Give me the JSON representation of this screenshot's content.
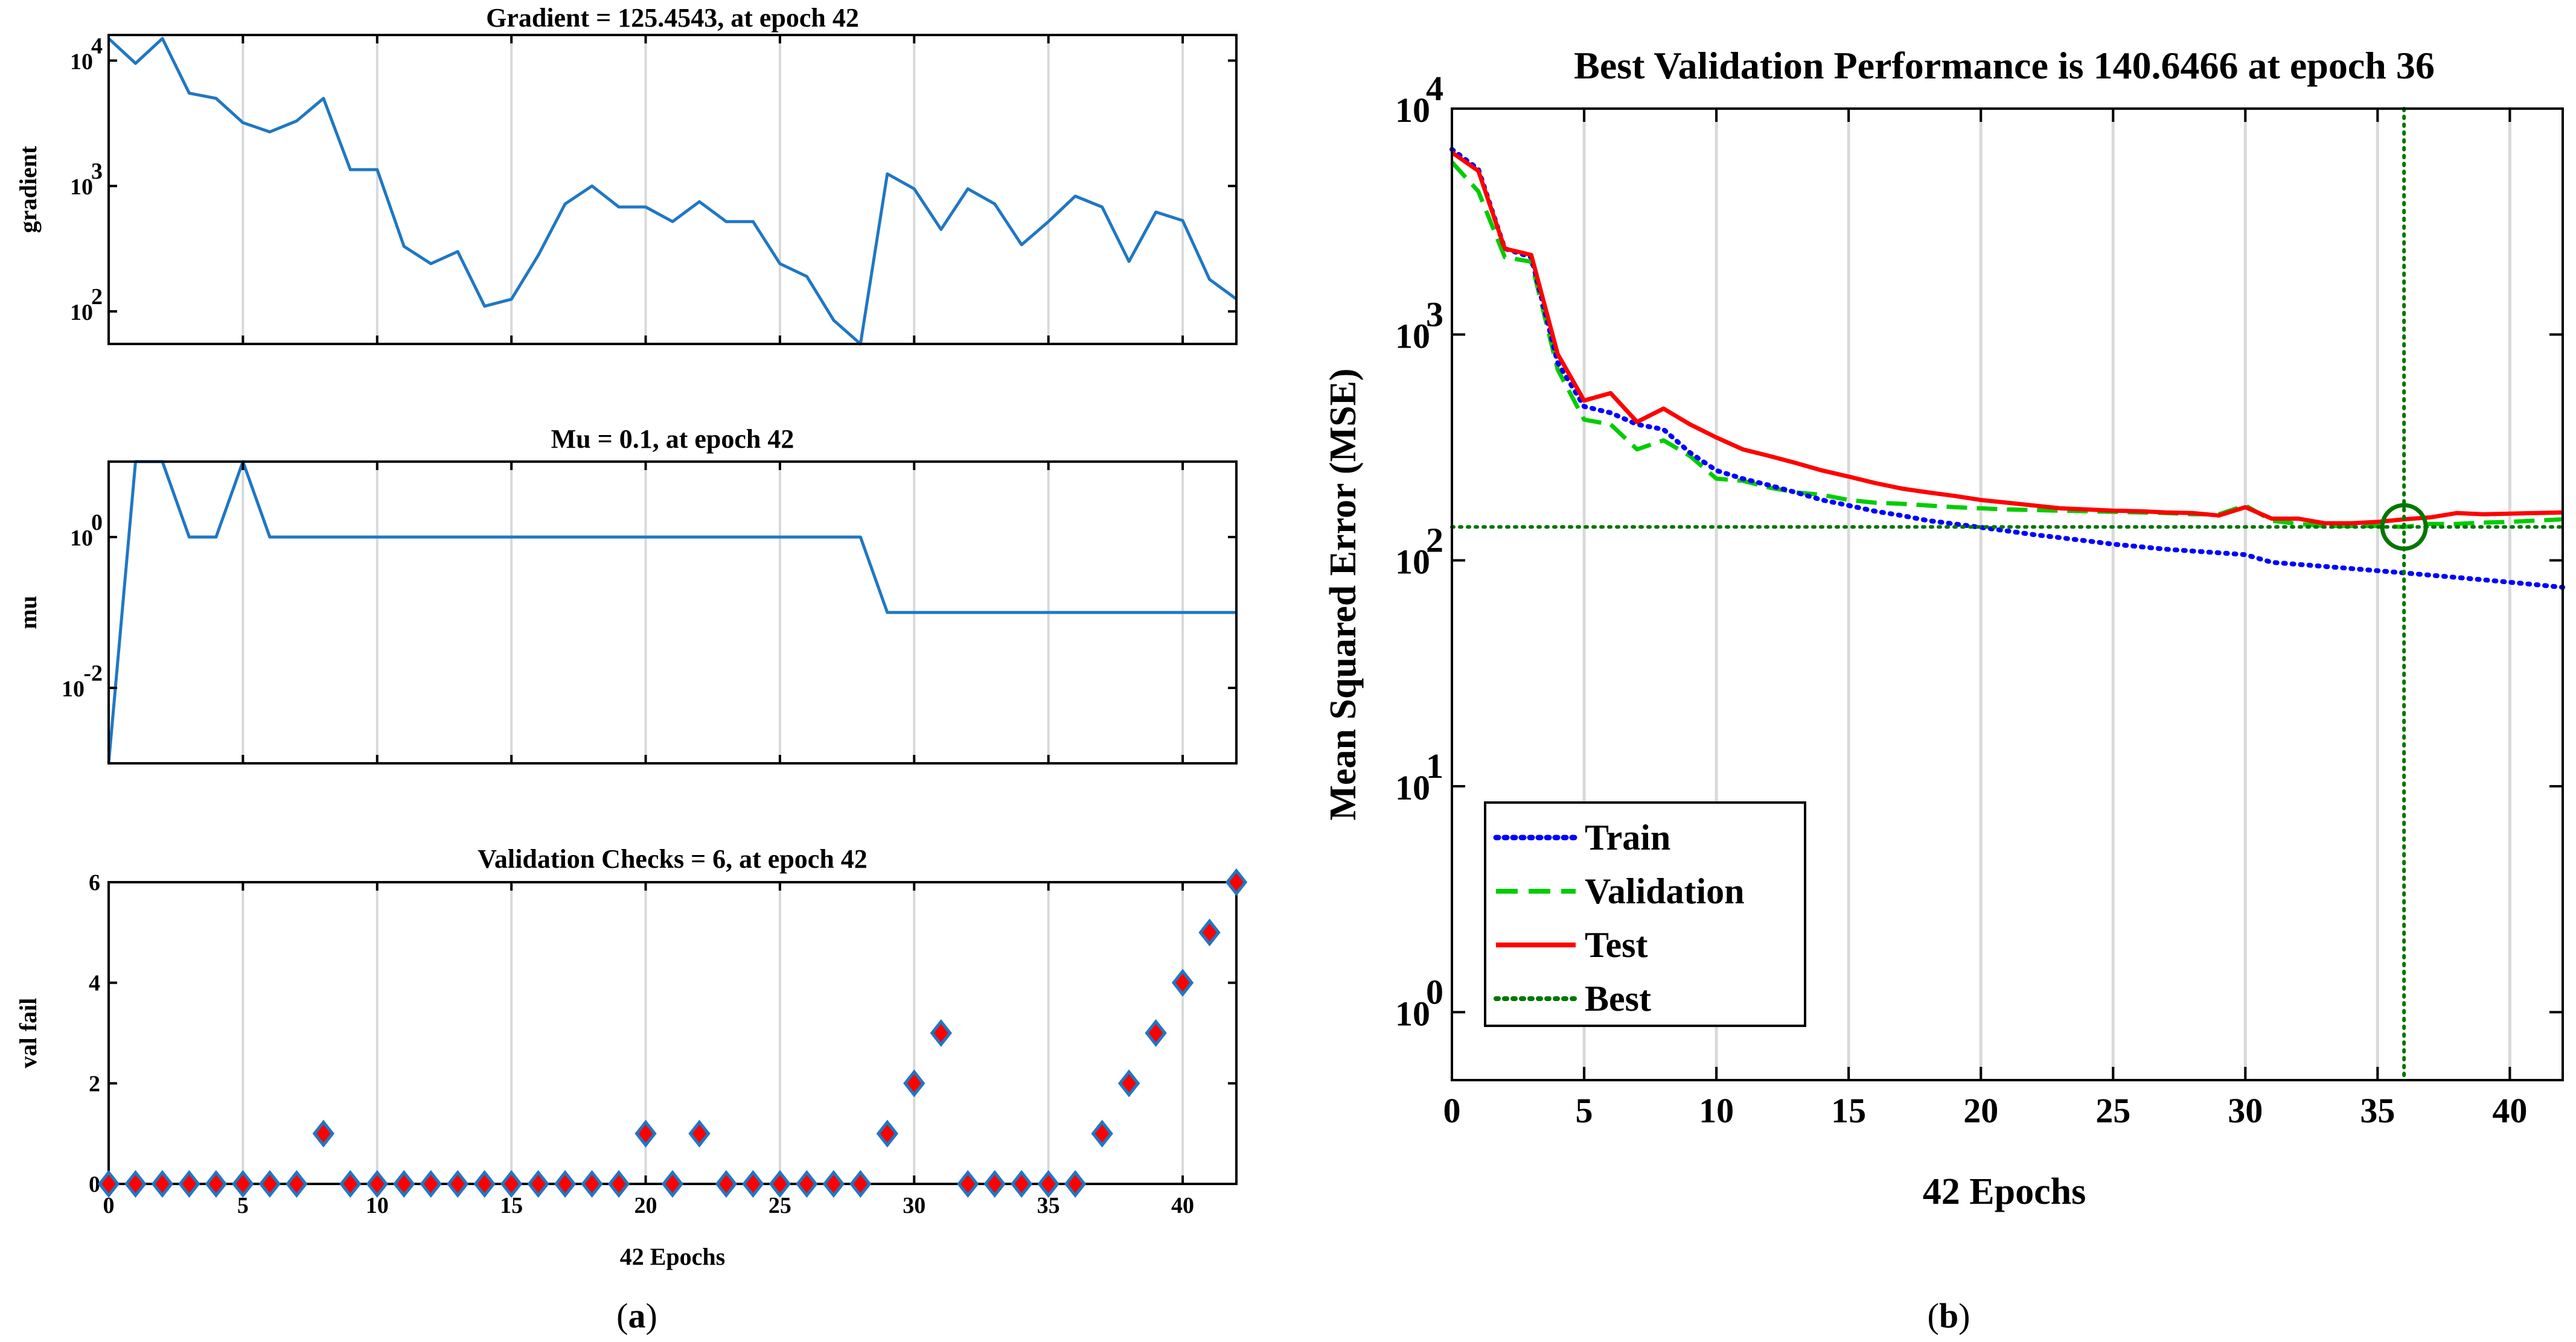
{
  "panels": [
    {
      "caption_open": "(",
      "caption_letter": "a",
      "caption_close": ")"
    },
    {
      "caption_open": "(",
      "caption_letter": "b",
      "caption_close": ")"
    }
  ],
  "colors": {
    "gradient_line": "#1f77c4",
    "mu_line": "#1f77c4",
    "marker_edge": "#1f77c4",
    "marker_fill": "#ff0000",
    "train": "#0000ff",
    "validation": "#00cc00",
    "test": "#ff0000",
    "best": "#007700",
    "grid": "#d9d9d9"
  },
  "chart_data": [
    {
      "id": "gradient",
      "type": "line",
      "title": "Gradient = 125.4543, at epoch 42",
      "xlabel": "",
      "ylabel": "gradient",
      "yscale": "log",
      "xlim": [
        0,
        42
      ],
      "ylim": [
        55,
        16000
      ],
      "grid_x": [
        5,
        10,
        15,
        20,
        25,
        30,
        35,
        40
      ],
      "yticks": [
        {
          "value": 100,
          "base": "10",
          "exp": "2"
        },
        {
          "value": 1000,
          "base": "10",
          "exp": "3"
        },
        {
          "value": 10000,
          "base": "10",
          "exp": "4"
        }
      ],
      "series": [
        {
          "name": "gradient",
          "x": [
            0,
            1,
            2,
            3,
            4,
            5,
            6,
            7,
            8,
            9,
            10,
            11,
            12,
            13,
            14,
            15,
            16,
            17,
            18,
            19,
            20,
            21,
            22,
            23,
            24,
            25,
            26,
            27,
            28,
            29,
            30,
            31,
            32,
            33,
            34,
            35,
            36,
            37,
            38,
            39,
            40,
            41,
            42
          ],
          "values": [
            15000,
            9500,
            15000,
            5500,
            5000,
            3200,
            2700,
            3300,
            5000,
            1350,
            1350,
            330,
            240,
            300,
            110,
            125,
            280,
            720,
            1000,
            680,
            680,
            520,
            750,
            520,
            520,
            240,
            190,
            85,
            55,
            1250,
            950,
            450,
            950,
            720,
            340,
            520,
            830,
            680,
            250,
            620,
            530,
            180,
            125.45
          ]
        }
      ]
    },
    {
      "id": "mu",
      "type": "line",
      "title": "Mu = 0.1, at epoch 42",
      "xlabel": "",
      "ylabel": "mu",
      "yscale": "log",
      "xlim": [
        0,
        42
      ],
      "ylim": [
        0.001,
        10
      ],
      "grid_x": [
        5,
        10,
        15,
        20,
        25,
        30,
        35,
        40
      ],
      "yticks": [
        {
          "value": 0.01,
          "base": "10",
          "exp": "-2"
        },
        {
          "value": 1,
          "base": "10",
          "exp": "0"
        }
      ],
      "series": [
        {
          "name": "mu",
          "x": [
            0,
            1,
            2,
            3,
            4,
            5,
            6,
            7,
            8,
            9,
            10,
            11,
            12,
            13,
            14,
            15,
            16,
            17,
            18,
            19,
            20,
            21,
            22,
            23,
            24,
            25,
            26,
            27,
            28,
            29,
            30,
            31,
            32,
            33,
            34,
            35,
            36,
            37,
            38,
            39,
            40,
            41,
            42
          ],
          "values": [
            0.001,
            10,
            10,
            1,
            1,
            10,
            1,
            1,
            1,
            1,
            1,
            1,
            1,
            1,
            1,
            1,
            1,
            1,
            1,
            1,
            1,
            1,
            1,
            1,
            1,
            1,
            1,
            1,
            1,
            0.1,
            0.1,
            0.1,
            0.1,
            0.1,
            0.1,
            0.1,
            0.1,
            0.1,
            0.1,
            0.1,
            0.1,
            0.1,
            0.1
          ]
        }
      ]
    },
    {
      "id": "valchecks",
      "type": "scatter",
      "title": "Validation Checks = 6, at epoch 42",
      "xlabel": "42 Epochs",
      "ylabel": "val fail",
      "yscale": "linear",
      "xlim": [
        0,
        42
      ],
      "ylim": [
        0,
        6
      ],
      "grid_x": [
        5,
        10,
        15,
        20,
        25,
        30,
        35,
        40
      ],
      "xticks": [
        {
          "value": 0,
          "label": "0"
        },
        {
          "value": 5,
          "label": "5"
        },
        {
          "value": 10,
          "label": "10"
        },
        {
          "value": 15,
          "label": "15"
        },
        {
          "value": 20,
          "label": "20"
        },
        {
          "value": 25,
          "label": "25"
        },
        {
          "value": 30,
          "label": "30"
        },
        {
          "value": 35,
          "label": "35"
        },
        {
          "value": 40,
          "label": "40"
        }
      ],
      "yticks": [
        {
          "value": 0,
          "label": "0"
        },
        {
          "value": 2,
          "label": "2"
        },
        {
          "value": 4,
          "label": "4"
        },
        {
          "value": 6,
          "label": "6"
        }
      ],
      "series": [
        {
          "name": "val fail",
          "x": [
            0,
            1,
            2,
            3,
            4,
            5,
            6,
            7,
            8,
            9,
            10,
            11,
            12,
            13,
            14,
            15,
            16,
            17,
            18,
            19,
            20,
            21,
            22,
            23,
            24,
            25,
            26,
            27,
            28,
            29,
            30,
            31,
            32,
            33,
            34,
            35,
            36,
            37,
            38,
            39,
            40,
            41,
            42
          ],
          "values": [
            0,
            0,
            0,
            0,
            0,
            0,
            0,
            0,
            1,
            0,
            0,
            0,
            0,
            0,
            0,
            0,
            0,
            0,
            0,
            0,
            1,
            0,
            1,
            0,
            0,
            0,
            0,
            0,
            0,
            1,
            2,
            3,
            0,
            0,
            0,
            0,
            0,
            1,
            2,
            3,
            4,
            5,
            6
          ]
        }
      ]
    },
    {
      "id": "performance",
      "type": "line",
      "title": "Best Validation Performance is 140.6466 at epoch 36",
      "xlabel": "42 Epochs",
      "ylabel": "Mean Squared Error  (MSE)",
      "yscale": "log",
      "xlim": [
        0,
        42
      ],
      "ylim": [
        0.5,
        10000
      ],
      "grid_x": [
        5,
        10,
        15,
        20,
        25,
        30,
        35,
        40
      ],
      "xticks": [
        {
          "value": 0,
          "label": "0"
        },
        {
          "value": 5,
          "label": "5"
        },
        {
          "value": 10,
          "label": "10"
        },
        {
          "value": 15,
          "label": "15"
        },
        {
          "value": 20,
          "label": "20"
        },
        {
          "value": 25,
          "label": "25"
        },
        {
          "value": 30,
          "label": "30"
        },
        {
          "value": 35,
          "label": "35"
        },
        {
          "value": 40,
          "label": "40"
        }
      ],
      "yticks": [
        {
          "value": 1,
          "base": "10",
          "exp": "0"
        },
        {
          "value": 10,
          "base": "10",
          "exp": "1"
        },
        {
          "value": 100,
          "base": "10",
          "exp": "2"
        },
        {
          "value": 1000,
          "base": "10",
          "exp": "3"
        },
        {
          "value": 10000,
          "base": "10",
          "exp": "4"
        }
      ],
      "best": {
        "epoch": 36,
        "value": 140.6466
      },
      "legend": {
        "position": "bottom-left",
        "entries": [
          "Train",
          "Validation",
          "Test",
          "Best"
        ]
      },
      "series": [
        {
          "name": "Train",
          "style": "dotted",
          "x": [
            0,
            1,
            2,
            3,
            4,
            5,
            6,
            7,
            8,
            9,
            10,
            11,
            12,
            13,
            14,
            15,
            16,
            17,
            18,
            19,
            20,
            21,
            22,
            23,
            24,
            25,
            26,
            27,
            28,
            29,
            30,
            31,
            32,
            33,
            34,
            35,
            36,
            37,
            38,
            39,
            40,
            41,
            42
          ],
          "values": [
            6600,
            5400,
            2400,
            2200,
            750,
            480,
            450,
            400,
            380,
            300,
            250,
            230,
            215,
            200,
            185,
            175,
            165,
            158,
            150,
            145,
            140,
            135,
            130,
            126,
            122,
            118,
            115,
            112,
            110,
            108,
            106,
            98,
            96,
            94,
            92,
            90,
            88,
            86,
            84,
            82,
            80,
            78,
            76
          ]
        },
        {
          "name": "Validation",
          "style": "dashed",
          "x": [
            0,
            1,
            2,
            3,
            4,
            5,
            6,
            7,
            8,
            9,
            10,
            11,
            12,
            13,
            14,
            15,
            16,
            17,
            18,
            19,
            20,
            21,
            22,
            23,
            24,
            25,
            26,
            27,
            28,
            29,
            30,
            31,
            32,
            33,
            34,
            35,
            36,
            37,
            38,
            39,
            40,
            41,
            42
          ],
          "values": [
            5800,
            4300,
            2200,
            2100,
            700,
            420,
            400,
            310,
            340,
            290,
            230,
            225,
            210,
            200,
            195,
            185,
            180,
            178,
            175,
            172,
            170,
            168,
            167,
            166,
            165,
            164,
            163,
            162,
            160,
            160,
            175,
            150,
            145,
            142,
            142,
            142,
            140.65,
            145,
            145,
            147,
            148,
            150,
            152
          ]
        },
        {
          "name": "Test",
          "style": "solid",
          "x": [
            0,
            1,
            2,
            3,
            4,
            5,
            6,
            7,
            8,
            9,
            10,
            11,
            12,
            13,
            14,
            15,
            16,
            17,
            18,
            19,
            20,
            21,
            22,
            23,
            24,
            25,
            26,
            27,
            28,
            29,
            30,
            31,
            32,
            33,
            34,
            35,
            36,
            37,
            38,
            39,
            40,
            41,
            42
          ],
          "values": [
            6400,
            5300,
            2400,
            2250,
            820,
            510,
            550,
            410,
            470,
            400,
            350,
            310,
            290,
            270,
            250,
            235,
            220,
            208,
            200,
            193,
            185,
            180,
            175,
            170,
            168,
            166,
            165,
            163,
            162,
            158,
            172,
            153,
            153,
            146,
            146,
            148,
            152,
            155,
            162,
            160,
            161,
            162,
            163
          ]
        }
      ]
    }
  ]
}
